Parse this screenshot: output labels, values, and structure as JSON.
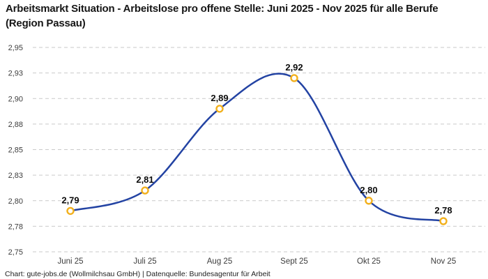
{
  "title": "Arbeitsmarkt Situation - Arbeitslose pro offene Stelle: Juni 2025 - Nov 2025 für alle Berufe (Region Passau)",
  "footer": "Chart: gute-jobs.de (Wollmilchsau GmbH) | Datenquelle: Bundesagentur für Arbeit",
  "chart_data": {
    "type": "line",
    "title": "Arbeitsmarkt Situation - Arbeitslose pro offene Stelle: Juni 2025 - Nov 2025 für alle Berufe (Region Passau)",
    "categories": [
      "Juni 25",
      "Juli 25",
      "Aug 25",
      "Sept 25",
      "Okt 25",
      "Nov 25"
    ],
    "series": [
      {
        "name": "Arbeitslose pro offene Stelle",
        "values": [
          2.79,
          2.81,
          2.89,
          2.92,
          2.8,
          2.78
        ],
        "value_labels": [
          "2,79",
          "2,81",
          "2,89",
          "2,92",
          "2,80",
          "2,78"
        ]
      }
    ],
    "xlabel": "",
    "ylabel": "",
    "ylim": [
      2.75,
      2.95
    ],
    "y_ticks": [
      {
        "value": 2.95,
        "label": "2,95"
      },
      {
        "value": 2.925,
        "label": "2,93"
      },
      {
        "value": 2.9,
        "label": "2,90"
      },
      {
        "value": 2.875,
        "label": "2,88"
      },
      {
        "value": 2.85,
        "label": "2,85"
      },
      {
        "value": 2.825,
        "label": "2,83"
      },
      {
        "value": 2.8,
        "label": "2,80"
      },
      {
        "value": 2.775,
        "label": "2,78"
      },
      {
        "value": 2.75,
        "label": "2,75"
      }
    ],
    "grid": "horizontal-dashed",
    "legend": "none",
    "colors": {
      "line": "#2343a3",
      "marker_ring": "#f2b01c",
      "marker_fill": "#ffffff",
      "gridline": "#c9c9c9",
      "axis_text": "#3d3d3d",
      "value_label": "#0c0c0c"
    }
  }
}
